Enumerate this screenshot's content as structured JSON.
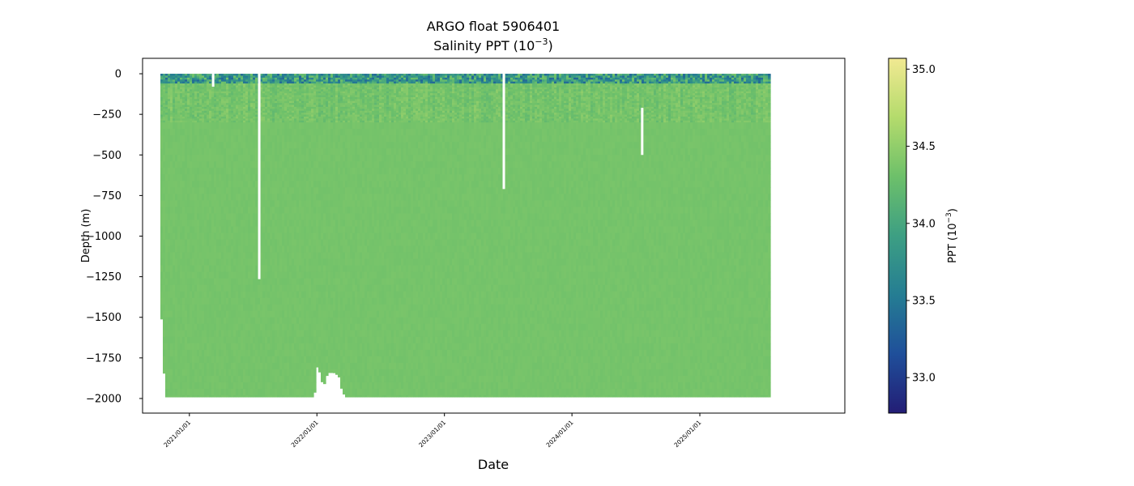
{
  "chart_data": {
    "type": "heatmap",
    "title": "ARGO float 5906401",
    "subtitle_prefix": "Salinity PPT (10",
    "subtitle_exp": "−3",
    "subtitle_suffix": ")",
    "xlabel": "Date",
    "ylabel": "Depth (m)",
    "colorbar_label_prefix": "PPT (10",
    "colorbar_label_exp": "−3",
    "colorbar_label_suffix": ")",
    "colormap": "viridis-like (dark blue → teal → green → pale yellow)",
    "colormap_stops": [
      "#231d75",
      "#1f4f9a",
      "#257d93",
      "#3d9f83",
      "#6dc06a",
      "#b4db6c",
      "#f1e992"
    ],
    "x_ticks": [
      {
        "label": "2021/01/01",
        "date": "2021-01-01"
      },
      {
        "label": "2022/01/01",
        "date": "2022-01-01"
      },
      {
        "label": "2023/01/01",
        "date": "2023-01-01"
      },
      {
        "label": "2024/01/01",
        "date": "2024-01-01"
      },
      {
        "label": "2025/01/01",
        "date": "2025-01-01"
      }
    ],
    "x_range": [
      "2020-08-20",
      "2026-02-20"
    ],
    "data_x_range": [
      "2020-10-10",
      "2025-07-15"
    ],
    "y_ticks": [
      {
        "label": "0",
        "value": 0
      },
      {
        "label": "−250",
        "value": -250
      },
      {
        "label": "−500",
        "value": -500
      },
      {
        "label": "−750",
        "value": -750
      },
      {
        "label": "−1000",
        "value": -1000
      },
      {
        "label": "−1250",
        "value": -1250
      },
      {
        "label": "−1500",
        "value": -1500
      },
      {
        "label": "−1750",
        "value": -1750
      },
      {
        "label": "−2000",
        "value": -2000
      }
    ],
    "ylim": [
      -2090,
      95
    ],
    "colorbar_ticks": [
      {
        "label": "33.0",
        "value": 33.0
      },
      {
        "label": "33.5",
        "value": 33.5
      },
      {
        "label": "34.0",
        "value": 34.0
      },
      {
        "label": "34.5",
        "value": 34.5
      },
      {
        "label": "35.0",
        "value": 35.0
      }
    ],
    "colorbar_range": [
      32.77,
      35.07
    ],
    "profile_max_depth": [
      {
        "date": "2020-10-10",
        "depth": -1510
      },
      {
        "date": "2020-10-20",
        "depth": -1990
      },
      {
        "date": "2021-12-20",
        "depth": -1990
      },
      {
        "date": "2021-12-23",
        "depth": -1950
      },
      {
        "date": "2021-12-27",
        "depth": -1820
      },
      {
        "date": "2022-01-02",
        "depth": -1780
      },
      {
        "date": "2022-01-08",
        "depth": -1890
      },
      {
        "date": "2022-01-20",
        "depth": -1910
      },
      {
        "date": "2022-01-28",
        "depth": -1840
      },
      {
        "date": "2022-02-15",
        "depth": -1840
      },
      {
        "date": "2022-03-01",
        "depth": -1860
      },
      {
        "date": "2022-03-10",
        "depth": -1950
      },
      {
        "date": "2022-03-20",
        "depth": -1990
      },
      {
        "date": "2025-07-15",
        "depth": -1990
      }
    ],
    "profile_gaps": [
      {
        "date": "2021-03-10",
        "from_depth": 0,
        "to_depth": -80
      },
      {
        "date": "2021-07-20",
        "from_depth": 0,
        "to_depth": -1265
      },
      {
        "date": "2023-06-20",
        "from_depth": 0,
        "to_depth": -710
      },
      {
        "date": "2024-07-20",
        "from_depth": -210,
        "to_depth": -500
      }
    ],
    "salinity_profile": [
      {
        "depth": 0,
        "value": 34.35
      },
      {
        "depth": -30,
        "value": 34.55
      },
      {
        "depth": -80,
        "value": 34.8
      },
      {
        "depth": -150,
        "value": 34.88
      },
      {
        "depth": -250,
        "value": 34.84
      },
      {
        "depth": -400,
        "value": 34.74
      },
      {
        "depth": -550,
        "value": 34.62
      },
      {
        "depth": -750,
        "value": 34.56
      },
      {
        "depth": -1000,
        "value": 34.6
      },
      {
        "depth": -1250,
        "value": 34.64
      },
      {
        "depth": -1500,
        "value": 34.67
      },
      {
        "depth": -2000,
        "value": 34.7
      }
    ]
  }
}
